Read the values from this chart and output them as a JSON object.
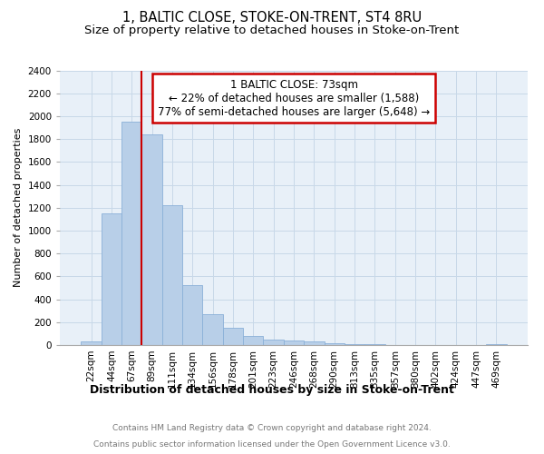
{
  "title": "1, BALTIC CLOSE, STOKE-ON-TRENT, ST4 8RU",
  "subtitle": "Size of property relative to detached houses in Stoke-on-Trent",
  "xlabel": "Distribution of detached houses by size in Stoke-on-Trent",
  "ylabel": "Number of detached properties",
  "categories": [
    "22sqm",
    "44sqm",
    "67sqm",
    "89sqm",
    "111sqm",
    "134sqm",
    "156sqm",
    "178sqm",
    "201sqm",
    "223sqm",
    "246sqm",
    "268sqm",
    "290sqm",
    "313sqm",
    "335sqm",
    "357sqm",
    "380sqm",
    "402sqm",
    "424sqm",
    "447sqm",
    "469sqm"
  ],
  "values": [
    30,
    1150,
    1950,
    1840,
    1220,
    520,
    270,
    150,
    80,
    50,
    40,
    30,
    14,
    5,
    5,
    3,
    2,
    3,
    2,
    2,
    5
  ],
  "bar_color": "#b8cfe8",
  "bar_edge_color": "#8ab0d8",
  "vline_color": "#cc0000",
  "annotation_text": "1 BALTIC CLOSE: 73sqm\n← 22% of detached houses are smaller (1,588)\n77% of semi-detached houses are larger (5,648) →",
  "annotation_box_color": "#ffffff",
  "annotation_box_edge_color": "#cc0000",
  "ylim": [
    0,
    2400
  ],
  "yticks": [
    0,
    200,
    400,
    600,
    800,
    1000,
    1200,
    1400,
    1600,
    1800,
    2000,
    2200,
    2400
  ],
  "grid_color": "#c8d8e8",
  "background_color": "#e8f0f8",
  "footer_line1": "Contains HM Land Registry data © Crown copyright and database right 2024.",
  "footer_line2": "Contains public sector information licensed under the Open Government Licence v3.0.",
  "title_fontsize": 10.5,
  "subtitle_fontsize": 9.5,
  "xlabel_fontsize": 9,
  "ylabel_fontsize": 8,
  "tick_fontsize": 7.5,
  "footer_fontsize": 6.5,
  "annotation_fontsize": 8.5
}
